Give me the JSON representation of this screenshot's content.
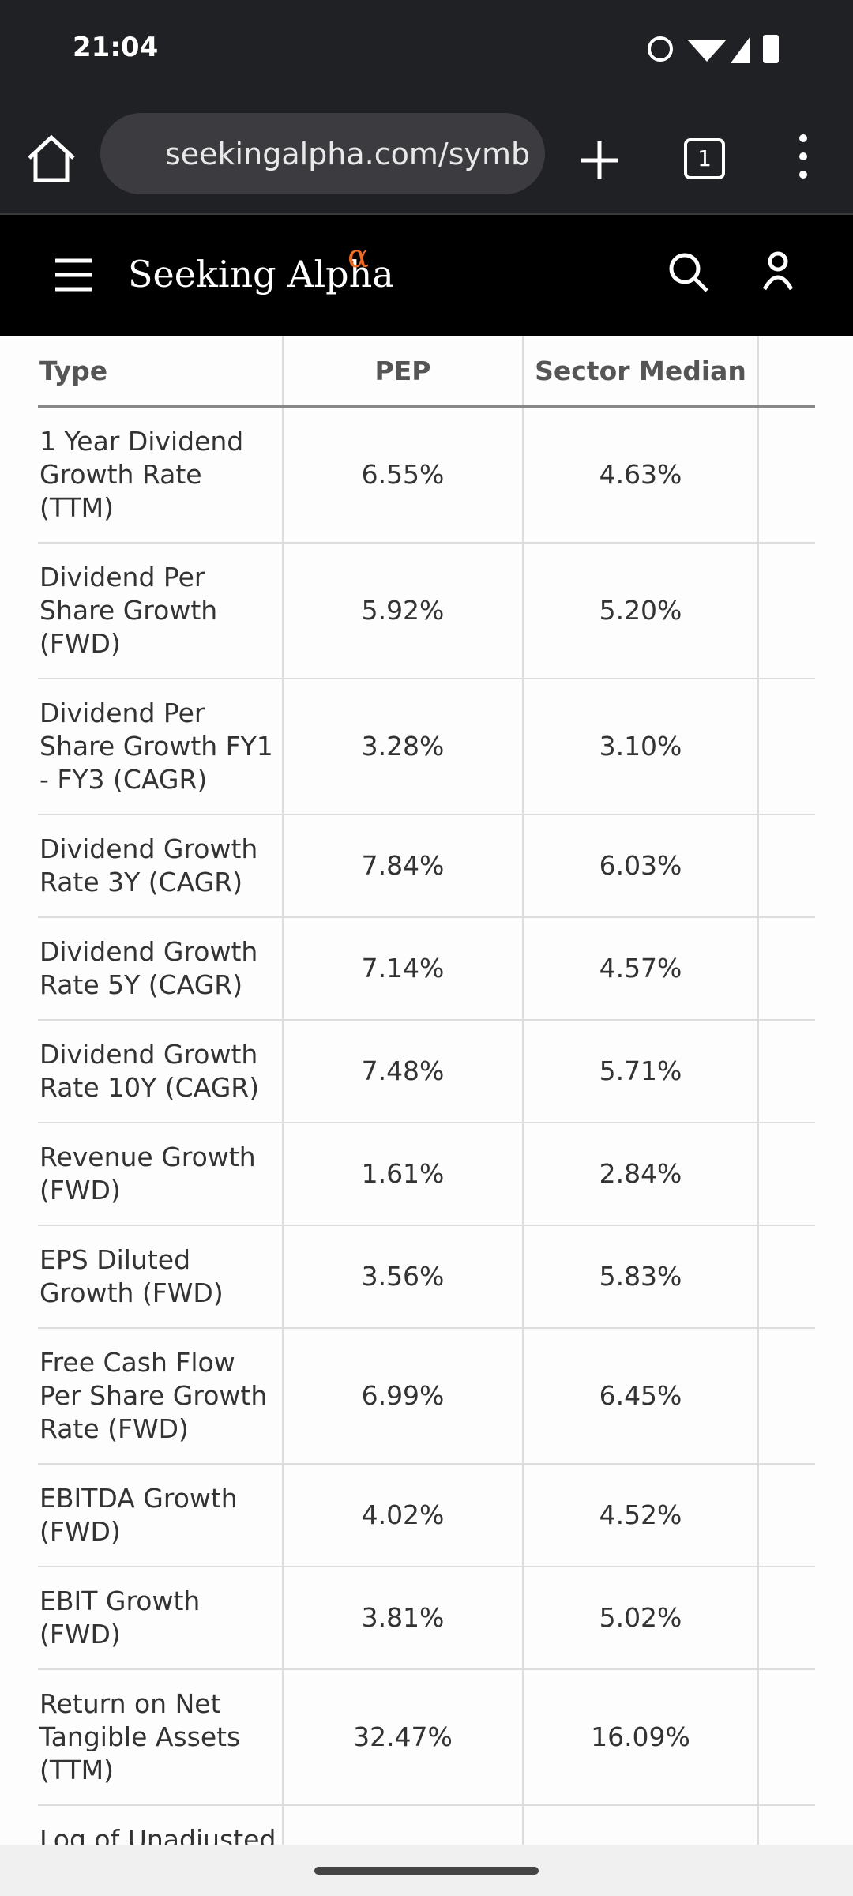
{
  "status_bar": {
    "time": "21:04"
  },
  "browser": {
    "url": "seekingalpha.com/symb",
    "tab_count": "1"
  },
  "site": {
    "brand": "Seeking Alpha",
    "brand_mark": "α"
  },
  "table": {
    "headers": [
      "Type",
      "PEP",
      "Sector Median",
      "%"
    ],
    "rows": [
      [
        "1 Year Dividend Growth Rate (TTM)",
        "6.55%",
        "4.63%"
      ],
      [
        "Dividend Per Share Growth (FWD)",
        "5.92%",
        "5.20%"
      ],
      [
        "Dividend Per Share Growth FY1 - FY3 (CAGR)",
        "3.28%",
        "3.10%"
      ],
      [
        "Dividend Growth Rate 3Y (CAGR)",
        "7.84%",
        "6.03%"
      ],
      [
        "Dividend Growth Rate 5Y (CAGR)",
        "7.14%",
        "4.57%"
      ],
      [
        "Dividend Growth Rate 10Y (CAGR)",
        "7.48%",
        "5.71%"
      ],
      [
        "Revenue Growth (FWD)",
        "1.61%",
        "2.84%"
      ],
      [
        "EPS Diluted Growth (FWD)",
        "3.56%",
        "5.83%"
      ],
      [
        "Free Cash Flow Per Share Growth Rate (FWD)",
        "6.99%",
        "6.45%"
      ],
      [
        "EBITDA Growth (FWD)",
        "4.02%",
        "4.52%"
      ],
      [
        "EBIT Growth (FWD)",
        "3.81%",
        "5.02%"
      ],
      [
        "Return on Net Tangible Assets (TTM)",
        "32.47%",
        "16.09%"
      ],
      [
        "Log of Unadjusted Stock"
      ]
    ]
  }
}
